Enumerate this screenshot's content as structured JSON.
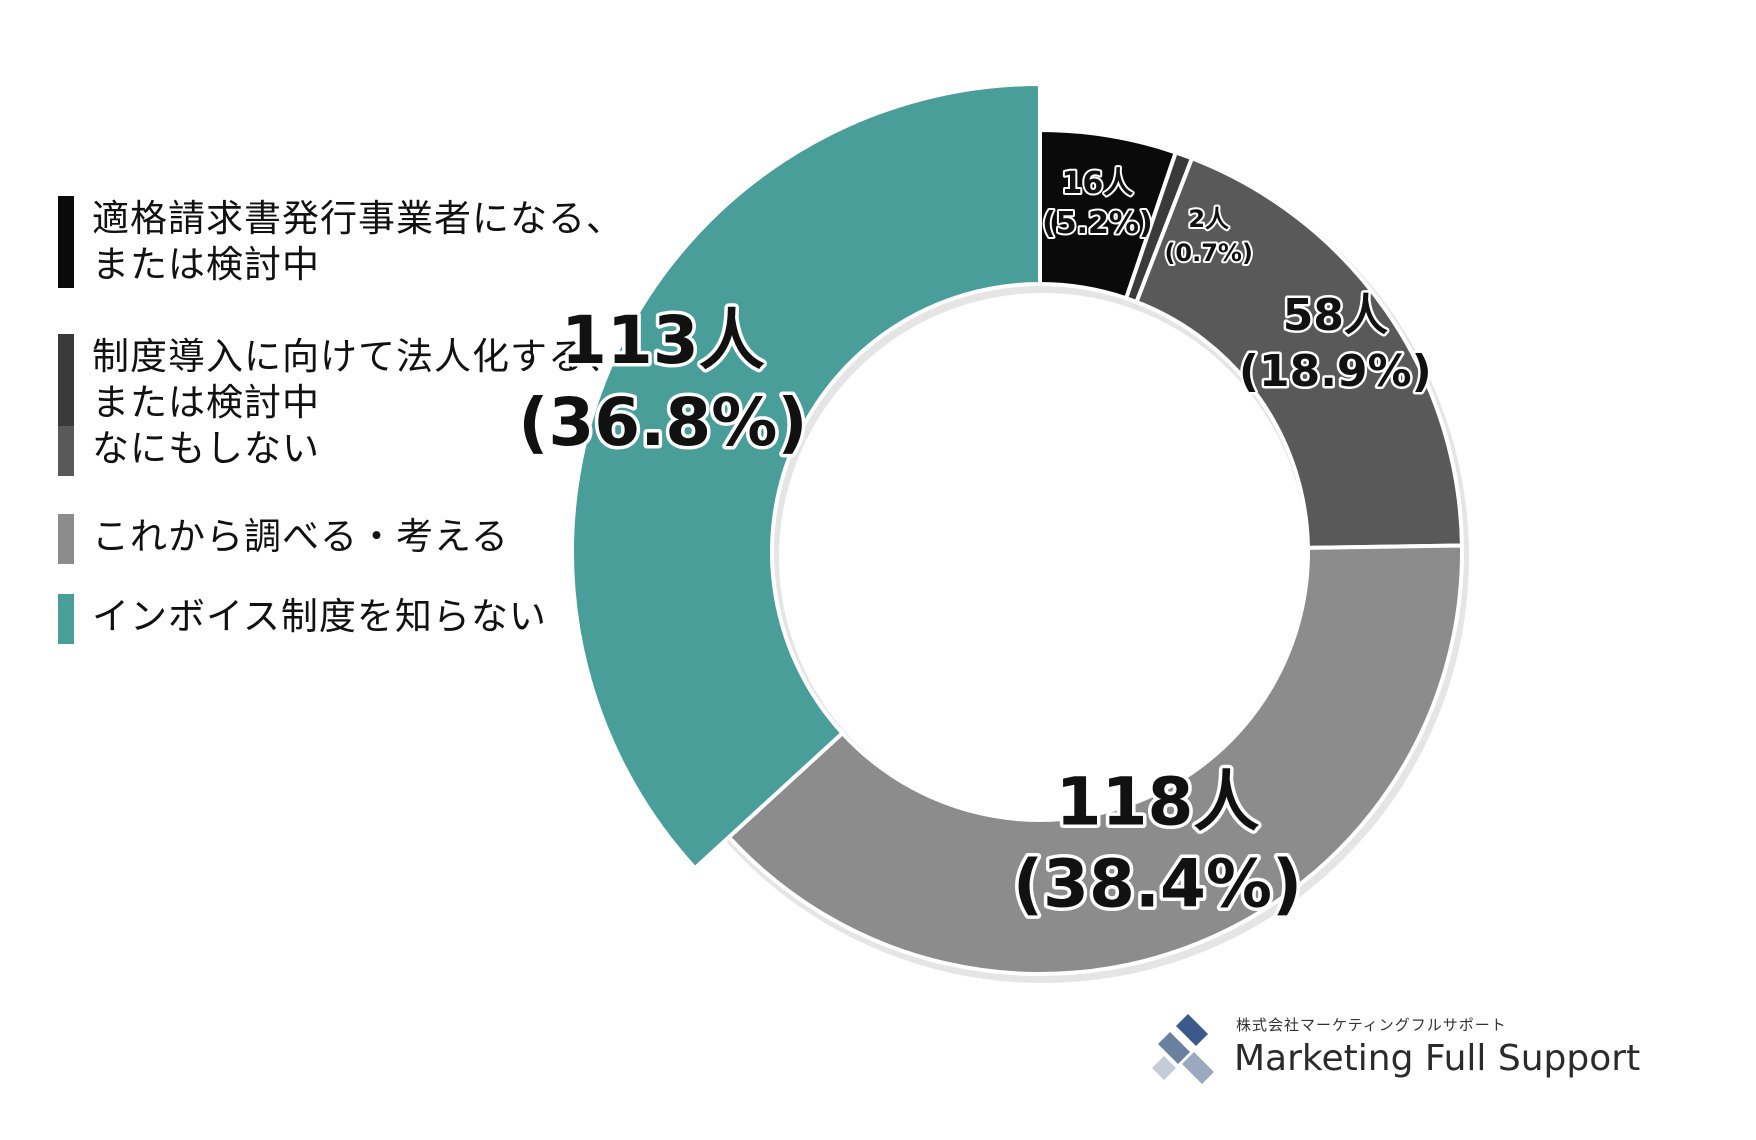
{
  "colors": {
    "slice_label_text": "#111111",
    "background": "#ffffff"
  },
  "chart_data": {
    "type": "pie",
    "variant": "donut",
    "title": "",
    "legend_position": "left",
    "slices": [
      {
        "label": "適格請求書発行事業者になる、\nまたは検討中",
        "count": 16,
        "percent": 5.2,
        "count_label": "16人",
        "percent_label": "(5.2%)",
        "color": "#0a0a0a"
      },
      {
        "label": "制度導入に向けて法人化する、\nまたは検討中",
        "count": 2,
        "percent": 0.7,
        "count_label": "2人",
        "percent_label": "(0.7%)",
        "color": "#3a3a3a"
      },
      {
        "label": "なにもしない",
        "count": 58,
        "percent": 18.9,
        "count_label": "58人",
        "percent_label": "(18.9%)",
        "color": "#595959"
      },
      {
        "label": "これから調べる・考える",
        "count": 118,
        "percent": 38.4,
        "count_label": "118人",
        "percent_label": "(38.4%)",
        "color": "#8c8c8c"
      },
      {
        "label": "インボイス制度を知らない",
        "count": 113,
        "percent": 36.8,
        "count_label": "113人",
        "percent_label": "(36.8%)",
        "color": "#4a9e9a"
      }
    ]
  },
  "brand": {
    "company": "株式会社マーケティングフルサポート",
    "name": "Marketing Full Support",
    "logo_icon": "mfs-logo-icon"
  }
}
